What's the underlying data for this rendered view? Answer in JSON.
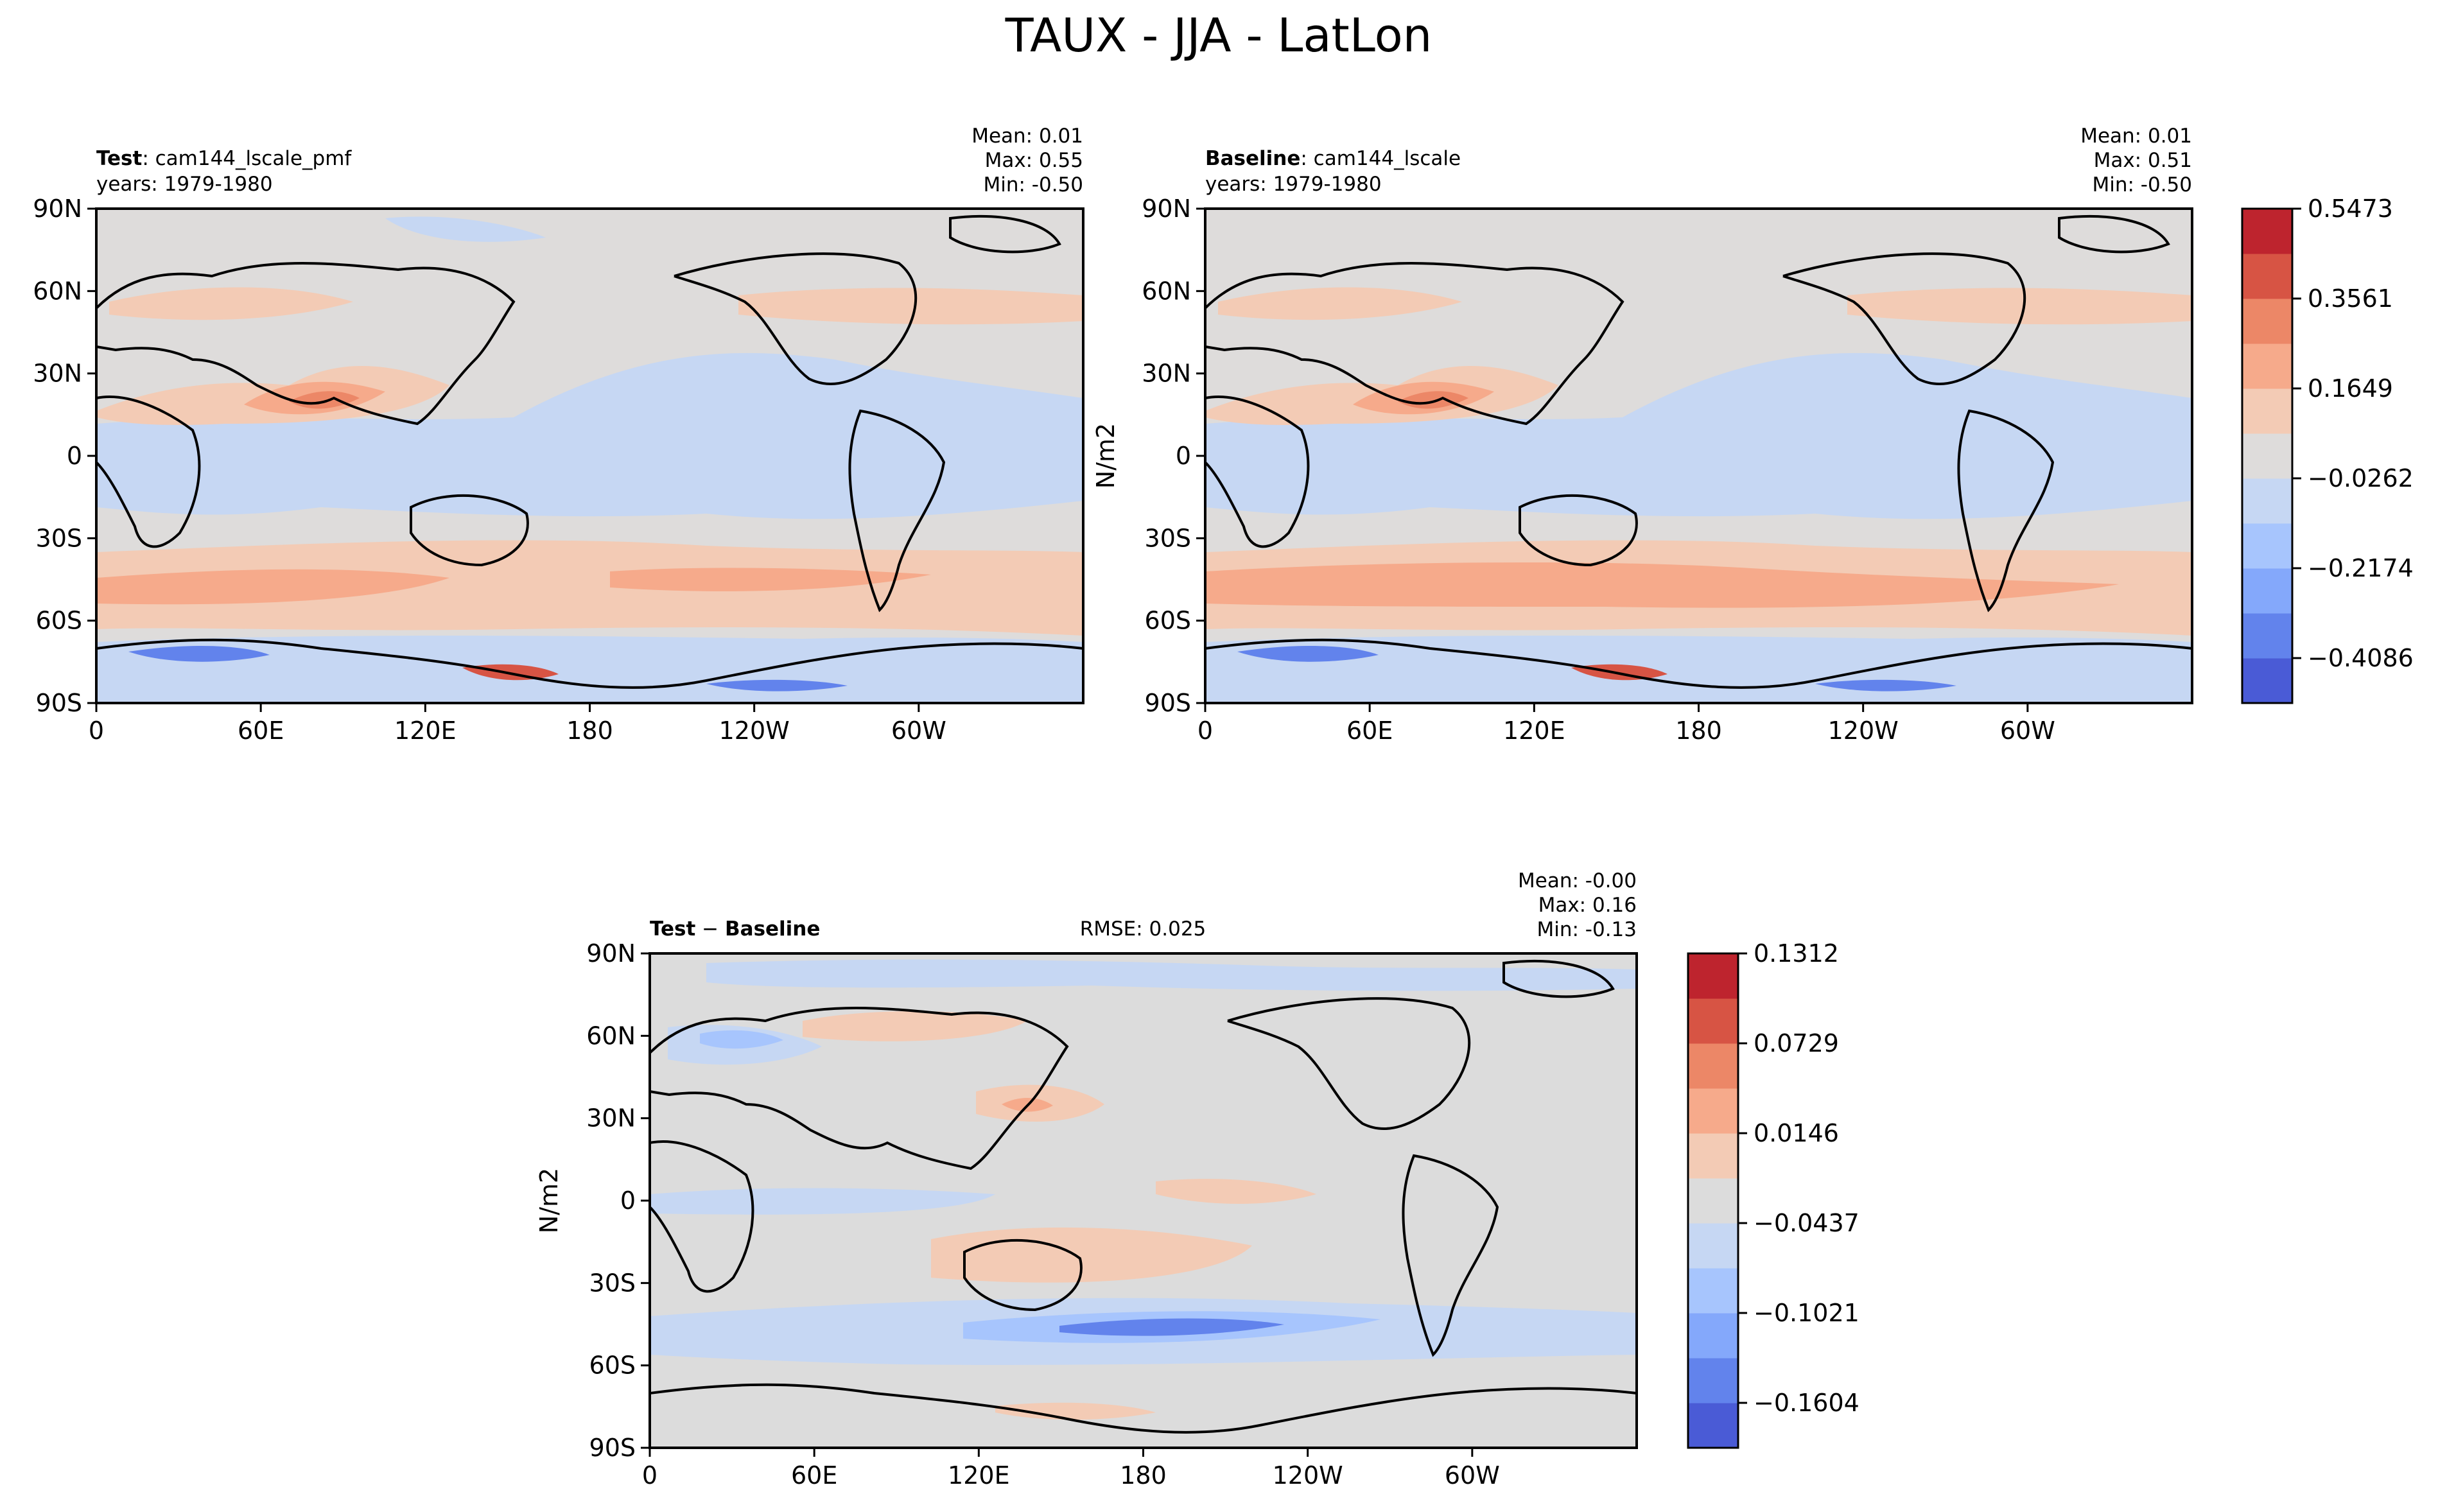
{
  "figure": {
    "title": "TAUX - JJA - LatLon"
  },
  "panels": {
    "test": {
      "label_bold": "Test",
      "label_rest": ": cam144_lscale_pmf",
      "years": "years: 1979-1980",
      "stats": [
        "Mean:  0.01",
        "Max:  0.55",
        "Min: -0.50"
      ]
    },
    "baseline": {
      "label_bold": "Baseline",
      "label_rest": ": cam144_lscale",
      "years": "years: 1979-1980",
      "ylabel": "N/m2",
      "stats": [
        "Mean:  0.01",
        "Max:  0.51",
        "Min: -0.50"
      ]
    },
    "diff": {
      "label_bold": "Test",
      "label_rest": " − ",
      "label_bold2": "Baseline",
      "rmse": "RMSE: 0.025",
      "ylabel": "N/m2",
      "stats": [
        "Mean: -0.00",
        "Max:  0.16",
        "Min: -0.13"
      ]
    }
  },
  "axes": {
    "lat_ticks": [
      "90N",
      "60N",
      "30N",
      "0",
      "30S",
      "60S",
      "90S"
    ],
    "lon_ticks": [
      "0",
      "60E",
      "120E",
      "180",
      "120W",
      "60W"
    ]
  },
  "colorbars": {
    "main": {
      "ticks": [
        "0.5473",
        "0.3561",
        "0.1649",
        "−0.0262",
        "−0.2174",
        "−0.4086"
      ],
      "colors": [
        "#4a5bd6",
        "#6283ec",
        "#84a8fb",
        "#a7c5fd",
        "#c6d7f3",
        "#dedcdb",
        "#f3cbb5",
        "#f6aa8b",
        "#ec8767",
        "#d75444",
        "#be242e"
      ]
    },
    "diff": {
      "ticks": [
        "0.1312",
        "0.0729",
        "0.0146",
        "−0.0437",
        "−0.1021",
        "−0.1604"
      ],
      "colors": [
        "#4a5bd6",
        "#6283ec",
        "#84a8fb",
        "#a7c5fd",
        "#c6d7f3",
        "#dcdcdc",
        "#f3cbb5",
        "#f6aa8b",
        "#ec8767",
        "#d75444",
        "#be242e"
      ]
    }
  },
  "palette": {
    "neutral": "#dedcdb",
    "neutral_diff": "#dcdcdc",
    "blue_light": "#c6d7f3",
    "blue_mid": "#a7c5fd",
    "blue_dark": "#6283ec",
    "blue_deep": "#4a5bd6",
    "red_light": "#f3cbb5",
    "red_mid": "#f6aa8b",
    "red_dark": "#ec8767",
    "red_deep": "#d75444"
  }
}
